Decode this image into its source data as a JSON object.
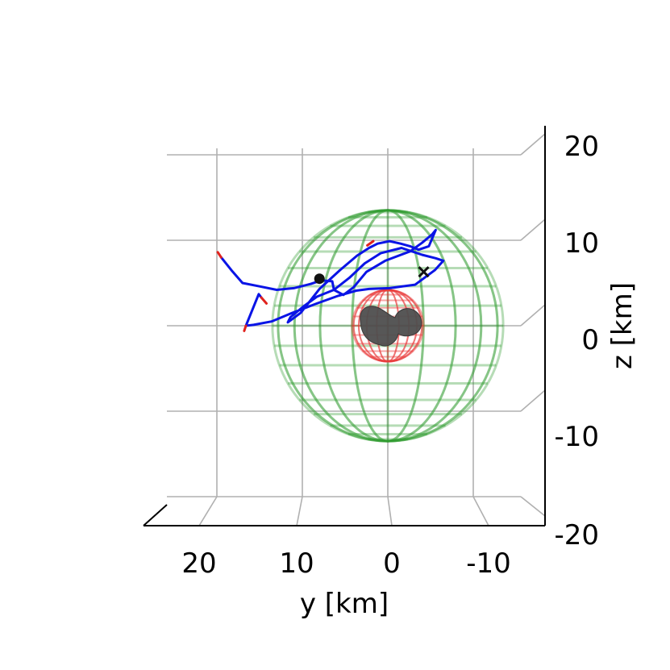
{
  "chart_data": {
    "type": "line",
    "subtype": "3d-trajectory",
    "view": "y-z projection (elevated)",
    "title": "",
    "ylabel": "y [km]",
    "zlabel": "z [km]",
    "y_axis": {
      "ticks": [
        20,
        10,
        0,
        -10
      ],
      "tick_labels": [
        "20",
        "10",
        "0",
        "-10"
      ],
      "range": [
        25,
        -15
      ],
      "inverted": true
    },
    "z_axis": {
      "ticks": [
        20,
        10,
        0,
        -10,
        -20
      ],
      "tick_labels": [
        "20",
        "10",
        "0",
        "-10",
        "-20"
      ],
      "range": [
        -20,
        20
      ]
    },
    "grid": true,
    "colors": {
      "trajectory": "#0a14e6",
      "segment_ends": "#e0231e",
      "outer_sphere": "#2e9a2e",
      "inner_sphere": "#e83a3a",
      "body": "#4e4e4e",
      "grid": "#b0b0b0",
      "markers": "#111111"
    },
    "shapes": [
      {
        "name": "outer-sphere",
        "center_yz": [
          0,
          0
        ],
        "radius_km": 13.5
      },
      {
        "name": "inner-sphere",
        "center_yz": [
          0,
          0
        ],
        "radius_km": 4.2
      },
      {
        "name": "nucleus",
        "center_yz": [
          0,
          0
        ],
        "approx_extent_km": 3.5
      }
    ],
    "markers": [
      {
        "name": "start-dot",
        "symbol": "circle",
        "y": 8,
        "z": 5.5
      },
      {
        "name": "end-cross",
        "symbol": "x",
        "y": -4.2,
        "z": 6.3
      }
    ],
    "series": [
      {
        "color": "#0a14e6",
        "points_yz": [
          [
            19.5,
            8
          ],
          [
            18.3,
            6.5
          ],
          [
            17,
            5
          ],
          [
            15,
            4.6
          ],
          [
            13,
            4.2
          ],
          [
            11,
            4.4
          ],
          [
            9,
            4.9
          ],
          [
            7.8,
            5.3
          ],
          [
            6.5,
            5.2
          ],
          [
            6.3,
            4.2
          ],
          [
            5.2,
            3.6
          ],
          [
            4,
            4.5
          ],
          [
            2.5,
            6.3
          ],
          [
            0.3,
            7.6
          ],
          [
            -2.6,
            8.7
          ],
          [
            -4,
            9.7
          ],
          [
            -5.2,
            10.7
          ],
          [
            -5.6,
            11.2
          ],
          [
            -4.8,
            9.3
          ],
          [
            -3.6,
            8.9
          ],
          [
            -2.6,
            9.3
          ],
          [
            -1.5,
            9.6
          ],
          [
            -0.2,
            9.9
          ],
          [
            1.2,
            9.6
          ],
          [
            2.2,
            9.1
          ],
          [
            3.6,
            8.2
          ],
          [
            5.6,
            6.5
          ],
          [
            8,
            4.3
          ],
          [
            10.2,
            1.5
          ],
          [
            11.7,
            0.4
          ],
          [
            11.4,
            1
          ],
          [
            9.8,
            2.3
          ],
          [
            8.3,
            3.4
          ],
          [
            6.3,
            4.2
          ],
          [
            4.5,
            5.6
          ],
          [
            2.7,
            7.3
          ],
          [
            0.8,
            8.5
          ],
          [
            -1.6,
            9.1
          ],
          [
            -4,
            8.3
          ],
          [
            -5.6,
            7.9
          ],
          [
            -6.5,
            7.6
          ],
          [
            -5.5,
            6.5
          ],
          [
            -3.2,
            4.8
          ],
          [
            -0.2,
            4.4
          ],
          [
            2.2,
            4.3
          ],
          [
            3.7,
            4.1
          ],
          [
            5.8,
            3.5
          ],
          [
            8.3,
            2.6
          ],
          [
            11.2,
            1.5
          ],
          [
            13.6,
            0.5
          ],
          [
            15.7,
            0.1
          ],
          [
            16.6,
            0
          ],
          [
            15.1,
            3.7
          ],
          [
            14.8,
            3.3
          ]
        ]
      },
      {
        "name": "segment-end-1",
        "color": "#e0231e",
        "points_yz": [
          [
            19.9,
            8.6
          ],
          [
            19.5,
            8
          ]
        ]
      },
      {
        "name": "segment-end-2",
        "color": "#e0231e",
        "points_yz": [
          [
            14.8,
            3.3
          ],
          [
            14.2,
            2.6
          ]
        ]
      },
      {
        "name": "segment-end-3",
        "color": "#e0231e",
        "points_yz": [
          [
            16.6,
            0
          ],
          [
            16.8,
            -0.6
          ]
        ]
      },
      {
        "name": "segment-end-4",
        "color": "#e0231e",
        "points_yz": [
          [
            1.7,
            9.9
          ],
          [
            2.4,
            9.4
          ]
        ]
      }
    ]
  }
}
